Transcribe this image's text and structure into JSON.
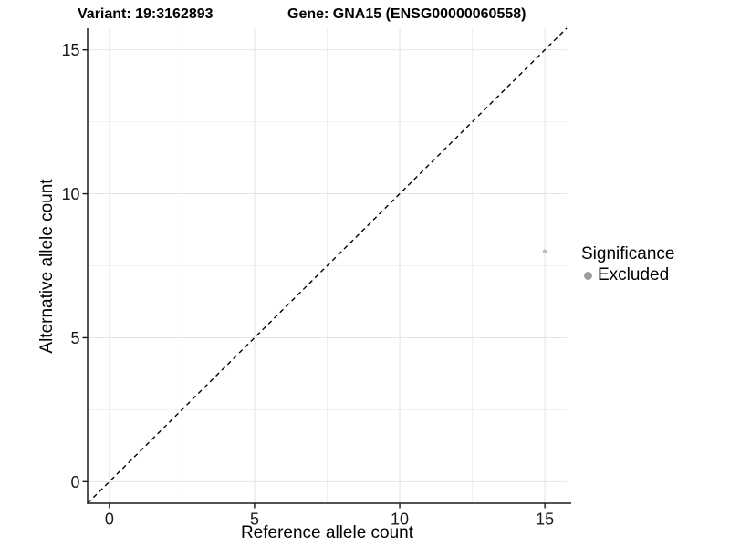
{
  "header": {
    "variant_title": "Variant: 19:3162893",
    "gene_title": "Gene: GNA15 (ENSG00000060558)"
  },
  "axes": {
    "x_label": "Reference allele count",
    "y_label": "Alternative allele count"
  },
  "legend": {
    "title": "Significance",
    "items": [
      {
        "label": "Excluded",
        "color": "#9e9e9e",
        "marker": "circle"
      }
    ]
  },
  "colors": {
    "background": "#ffffff",
    "axis": "#1a1a1a",
    "text": "#000000",
    "grid_major": "#e4e4e4",
    "grid_minor": "#f0f0f0",
    "reference_line": "#000000",
    "point": "#bdbdbd"
  },
  "chart_data": {
    "type": "scatter",
    "title": "Variant: 19:3162893   Gene: GNA15 (ENSG00000060558)",
    "xlabel": "Reference allele count",
    "ylabel": "Alternative allele count",
    "x_ticks": [
      0,
      5,
      10,
      15
    ],
    "y_ticks": [
      0,
      5,
      10,
      15
    ],
    "xlim": [
      -0.75,
      15.75
    ],
    "ylim": [
      -0.75,
      15.75
    ],
    "grid": "major+minor",
    "legend_position": "right",
    "series": [
      {
        "name": "Excluded",
        "color": "#bdbdbd",
        "points": [
          {
            "x": 15,
            "y": 8
          }
        ]
      }
    ],
    "reference_line": {
      "slope": 1,
      "intercept": 0,
      "style": "dashed",
      "color": "#000000"
    }
  }
}
